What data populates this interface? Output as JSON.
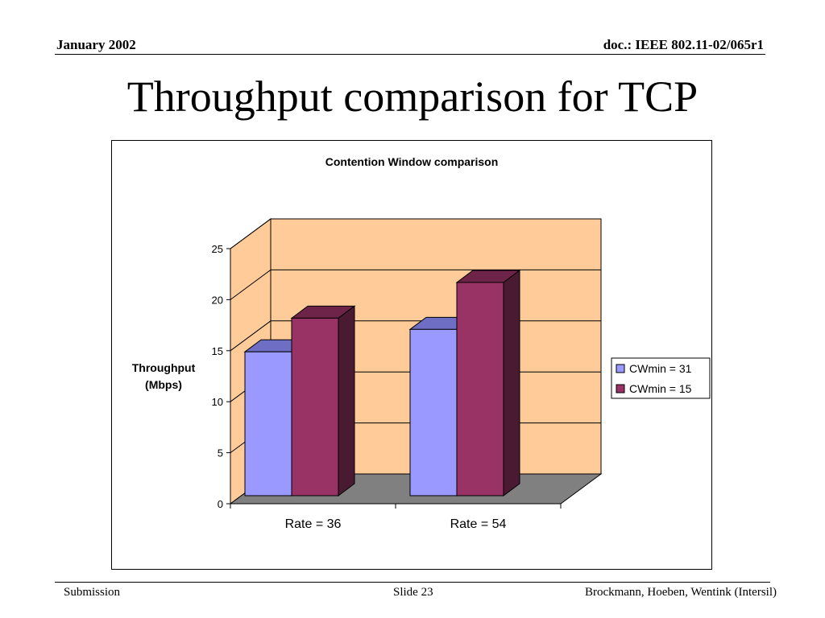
{
  "header": {
    "date": "January 2002",
    "doc": "doc.: IEEE 802.11-02/065r1"
  },
  "slide": {
    "title": "Throughput comparison for TCP"
  },
  "footer": {
    "left": "Submission",
    "center": "Slide 23",
    "right": "Brockmann, Hoeben, Wentink (Intersil)"
  },
  "chart_data": {
    "type": "bar",
    "title": "Contention Window comparison",
    "ylabel_lines": [
      "Throughput",
      "(Mbps)"
    ],
    "xlabel": "",
    "categories": [
      "Rate = 36",
      "Rate = 54"
    ],
    "series": [
      {
        "name": "CWmin = 31",
        "values": [
          14.1,
          16.3
        ],
        "color": "#9999ff",
        "top_color": "#6e6ec4",
        "side_color": "#4c4c9a"
      },
      {
        "name": "CWmin = 15",
        "values": [
          17.4,
          20.9
        ],
        "color": "#993366",
        "top_color": "#6e2448",
        "side_color": "#4a1a33"
      }
    ],
    "ylim": [
      0,
      25
    ],
    "yticks": [
      0,
      5,
      10,
      15,
      20,
      25
    ],
    "grid": true,
    "legend": "right",
    "wall_color": "#ffcc99",
    "floor_color": "#808080",
    "three_d": true
  }
}
